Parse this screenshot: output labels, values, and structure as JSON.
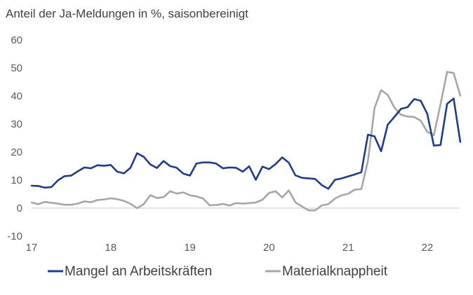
{
  "chart_data": {
    "type": "line",
    "title": "Anteil der Ja-Meldungen in %, saisonbereinigt",
    "ylim": [
      -10,
      60
    ],
    "yticks": [
      -10,
      0,
      10,
      20,
      30,
      40,
      50,
      60
    ],
    "xlim": [
      2017,
      2022.4
    ],
    "xticks": [
      {
        "value": 2017,
        "label": "17"
      },
      {
        "value": 2018,
        "label": "18"
      },
      {
        "value": 2019,
        "label": "19"
      },
      {
        "value": 2020,
        "label": "20"
      },
      {
        "value": 2021,
        "label": "21"
      },
      {
        "value": 2022,
        "label": "22"
      }
    ],
    "grid": false,
    "legend": "bottom",
    "series": [
      {
        "name": "Mangel an Arbeitskräften",
        "color": "#1F3C88",
        "points": [
          [
            2017.0,
            8.0
          ],
          [
            2017.083,
            7.9
          ],
          [
            2017.167,
            7.3
          ],
          [
            2017.25,
            7.5
          ],
          [
            2017.333,
            9.9
          ],
          [
            2017.417,
            11.4
          ],
          [
            2017.5,
            11.6
          ],
          [
            2017.583,
            13.1
          ],
          [
            2017.667,
            14.5
          ],
          [
            2017.75,
            14.2
          ],
          [
            2017.833,
            15.3
          ],
          [
            2017.917,
            15.1
          ],
          [
            2018.0,
            15.4
          ],
          [
            2018.083,
            13.0
          ],
          [
            2018.167,
            12.4
          ],
          [
            2018.25,
            14.4
          ],
          [
            2018.333,
            19.6
          ],
          [
            2018.417,
            18.3
          ],
          [
            2018.5,
            15.6
          ],
          [
            2018.583,
            14.3
          ],
          [
            2018.667,
            16.8
          ],
          [
            2018.75,
            15.0
          ],
          [
            2018.833,
            14.4
          ],
          [
            2018.917,
            12.3
          ],
          [
            2019.0,
            11.6
          ],
          [
            2019.083,
            15.9
          ],
          [
            2019.167,
            16.3
          ],
          [
            2019.25,
            16.3
          ],
          [
            2019.333,
            15.9
          ],
          [
            2019.417,
            14.2
          ],
          [
            2019.5,
            14.5
          ],
          [
            2019.583,
            14.4
          ],
          [
            2019.667,
            13.0
          ],
          [
            2019.75,
            14.9
          ],
          [
            2019.833,
            10.1
          ],
          [
            2019.917,
            14.8
          ],
          [
            2020.0,
            13.9
          ],
          [
            2020.083,
            15.7
          ],
          [
            2020.167,
            18.1
          ],
          [
            2020.25,
            16.2
          ],
          [
            2020.333,
            11.7
          ],
          [
            2020.417,
            10.8
          ],
          [
            2020.5,
            10.6
          ],
          [
            2020.583,
            10.4
          ],
          [
            2020.667,
            8.2
          ],
          [
            2020.75,
            6.9
          ],
          [
            2020.833,
            10.1
          ],
          [
            2020.917,
            10.6
          ],
          [
            2021.0,
            11.3
          ],
          [
            2021.083,
            12.0
          ],
          [
            2021.167,
            12.8
          ],
          [
            2021.25,
            26.2
          ],
          [
            2021.333,
            25.6
          ],
          [
            2021.417,
            20.3
          ],
          [
            2021.5,
            29.8
          ],
          [
            2021.583,
            32.5
          ],
          [
            2021.667,
            35.4
          ],
          [
            2021.75,
            36.0
          ],
          [
            2021.833,
            38.9
          ],
          [
            2021.917,
            38.3
          ],
          [
            2022.0,
            33.6
          ],
          [
            2022.083,
            22.3
          ],
          [
            2022.167,
            22.5
          ],
          [
            2022.25,
            37.2
          ],
          [
            2022.333,
            39.1
          ],
          [
            2022.417,
            23.6
          ]
        ]
      },
      {
        "name": "Materialknappheit",
        "color": "#A6A6A6",
        "points": [
          [
            2017.0,
            2.0
          ],
          [
            2017.083,
            1.4
          ],
          [
            2017.167,
            2.2
          ],
          [
            2017.25,
            1.9
          ],
          [
            2017.333,
            1.6
          ],
          [
            2017.417,
            1.2
          ],
          [
            2017.5,
            1.2
          ],
          [
            2017.583,
            1.6
          ],
          [
            2017.667,
            2.4
          ],
          [
            2017.75,
            2.1
          ],
          [
            2017.833,
            2.9
          ],
          [
            2017.917,
            3.1
          ],
          [
            2018.0,
            3.5
          ],
          [
            2018.083,
            3.2
          ],
          [
            2018.167,
            2.6
          ],
          [
            2018.25,
            1.5
          ],
          [
            2018.333,
            0.0
          ],
          [
            2018.417,
            1.4
          ],
          [
            2018.5,
            4.6
          ],
          [
            2018.583,
            3.6
          ],
          [
            2018.667,
            3.9
          ],
          [
            2018.75,
            6.0
          ],
          [
            2018.833,
            5.2
          ],
          [
            2018.917,
            5.6
          ],
          [
            2019.0,
            4.6
          ],
          [
            2019.083,
            4.2
          ],
          [
            2019.167,
            3.4
          ],
          [
            2019.25,
            1.0
          ],
          [
            2019.333,
            1.1
          ],
          [
            2019.417,
            1.5
          ],
          [
            2019.5,
            0.9
          ],
          [
            2019.583,
            1.8
          ],
          [
            2019.667,
            1.6
          ],
          [
            2019.75,
            1.8
          ],
          [
            2019.833,
            2.0
          ],
          [
            2019.917,
            3.0
          ],
          [
            2020.0,
            5.4
          ],
          [
            2020.083,
            6.0
          ],
          [
            2020.167,
            3.8
          ],
          [
            2020.25,
            6.3
          ],
          [
            2020.333,
            2.1
          ],
          [
            2020.417,
            0.6
          ],
          [
            2020.5,
            -0.8
          ],
          [
            2020.583,
            -0.8
          ],
          [
            2020.667,
            1.0
          ],
          [
            2020.75,
            1.4
          ],
          [
            2020.833,
            3.4
          ],
          [
            2020.917,
            4.6
          ],
          [
            2021.0,
            5.1
          ],
          [
            2021.083,
            6.6
          ],
          [
            2021.167,
            6.8
          ],
          [
            2021.25,
            16.9
          ],
          [
            2021.333,
            35.7
          ],
          [
            2021.417,
            42.1
          ],
          [
            2021.5,
            40.4
          ],
          [
            2021.583,
            35.9
          ],
          [
            2021.667,
            33.3
          ],
          [
            2021.75,
            32.7
          ],
          [
            2021.833,
            32.5
          ],
          [
            2021.917,
            31.2
          ],
          [
            2022.0,
            27.2
          ],
          [
            2022.083,
            26.0
          ],
          [
            2022.167,
            37.0
          ],
          [
            2022.25,
            48.6
          ],
          [
            2022.333,
            48.2
          ],
          [
            2022.417,
            40.1
          ]
        ]
      }
    ]
  }
}
